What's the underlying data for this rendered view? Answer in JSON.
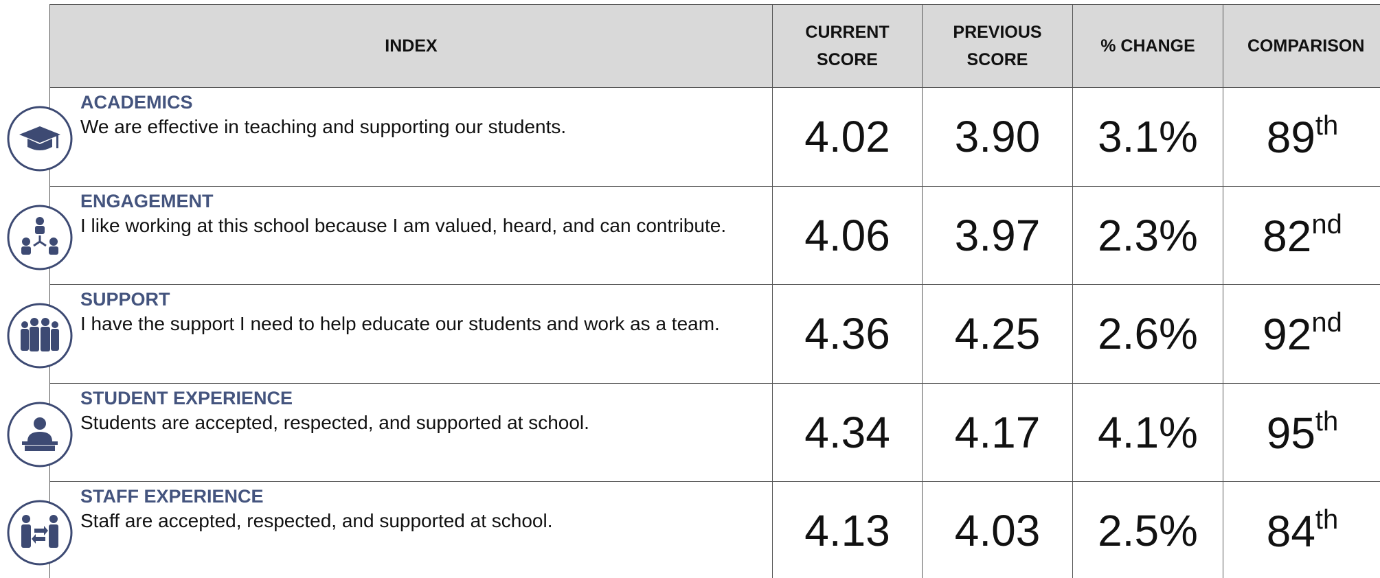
{
  "table": {
    "header": [
      "INDEX",
      "CURRENT SCORE",
      "PREVIOUS SCORE",
      "% CHANGE",
      "COMPARISON"
    ],
    "rows": [
      {
        "title": "ACADEMICS",
        "description": "We are effective in teaching and supporting our students.",
        "current": "4.02",
        "previous": "3.90",
        "change": "3.1%",
        "comparison": "89",
        "suffix": "th"
      },
      {
        "title": "ENGAGEMENT",
        "description": "I like working at this school because I am valued, heard, and can contribute.",
        "current": "4.06",
        "previous": "3.97",
        "change": "2.3%",
        "comparison": "82",
        "suffix": "nd"
      },
      {
        "title": "SUPPORT",
        "description": "I have the support I need to help educate our students and work as a team.",
        "current": "4.36",
        "previous": "4.25",
        "change": "2.6%",
        "comparison": "92",
        "suffix": "nd"
      },
      {
        "title": "STUDENT EXPERIENCE",
        "description": "Students are accepted, respected, and supported at school.",
        "current": "4.34",
        "previous": "4.17",
        "change": "4.1%",
        "comparison": "95",
        "suffix": "th"
      },
      {
        "title": "STAFF EXPERIENCE",
        "description": "Staff are accepted, respected, and supported at school.",
        "current": "4.13",
        "previous": "4.03",
        "change": "2.5%",
        "comparison": "84",
        "suffix": "th"
      }
    ]
  }
}
